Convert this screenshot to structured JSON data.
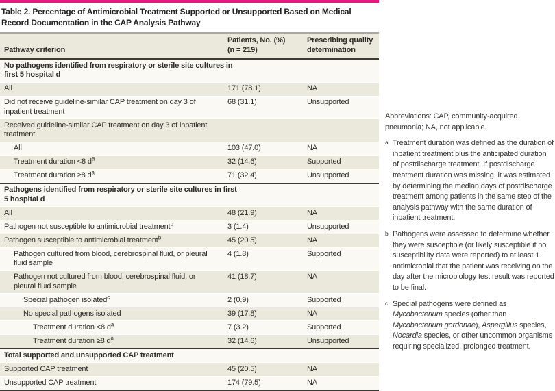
{
  "title": "Table 2. Percentage of Antimicrobial Treatment Supported or Unsupported Based on Medical Record Documentation in the CAP Analysis Pathway",
  "columns": {
    "criterion": "Pathway criterion",
    "patients_line1": "Patients, No. (%)",
    "patients_line2": "(n = 219)",
    "quality_line1": "Prescribing quality",
    "quality_line2": "determination"
  },
  "colors": {
    "accent_bar": "#e5197d",
    "row_beige": "#ebe8dc",
    "row_cream": "#faf9f4",
    "rule_dark": "#3c3a35",
    "rule_gray": "#aba79d"
  },
  "rows": [
    {
      "type": "section",
      "label": "No pathogens identified from respiratory or sterile site cultures in first 5 hospital d",
      "shade": "white"
    },
    {
      "type": "data",
      "label": "All",
      "indent": 0,
      "value": "171 (78.1)",
      "determination": "NA",
      "shade": "beige"
    },
    {
      "type": "data",
      "label": "Did not receive guideline-similar CAP treatment on day 3 of inpatient treatment",
      "indent": 0,
      "value": "68 (31.1)",
      "determination": "Unsupported",
      "shade": "white"
    },
    {
      "type": "data",
      "label": "Received guideline-similar CAP treatment on day 3 of inpatient treatment",
      "indent": 0,
      "value": "",
      "determination": "",
      "shade": "beige"
    },
    {
      "type": "data",
      "label": "All",
      "indent": 1,
      "value": "103 (47.0)",
      "determination": "NA",
      "shade": "white"
    },
    {
      "type": "data",
      "label": "Treatment duration <8 d",
      "sup": "a",
      "indent": 1,
      "value": "32 (14.6)",
      "determination": "Supported",
      "shade": "beige"
    },
    {
      "type": "data",
      "label": "Treatment duration ≥8 d",
      "sup": "a",
      "indent": 1,
      "value": "71 (32.4)",
      "determination": "Unsupported",
      "shade": "white",
      "rule_after": true
    },
    {
      "type": "section",
      "label": "Pathogens identified from respiratory or sterile site cultures in first 5 hospital d",
      "shade": "white"
    },
    {
      "type": "data",
      "label": "All",
      "indent": 0,
      "value": "48 (21.9)",
      "determination": "NA",
      "shade": "beige"
    },
    {
      "type": "data",
      "label": "Pathogen not susceptible to antimicrobial treatment",
      "sup": "b",
      "indent": 0,
      "value": "3 (1.4)",
      "determination": "Unsupported",
      "shade": "white"
    },
    {
      "type": "data",
      "label": "Pathogen susceptible to antimicrobial treatment",
      "sup": "b",
      "indent": 0,
      "value": "45 (20.5)",
      "determination": "NA",
      "shade": "beige"
    },
    {
      "type": "data",
      "label": "Pathogen cultured from blood, cerebrospinal fluid, or pleural fluid sample",
      "indent": 1,
      "value": "4 (1.8)",
      "determination": "Supported",
      "shade": "white"
    },
    {
      "type": "data",
      "label": "Pathogen not cultured from blood, cerebrospinal fluid, or pleural fluid sample",
      "indent": 1,
      "value": "41 (18.7)",
      "determination": "NA",
      "shade": "beige"
    },
    {
      "type": "data",
      "label": "Special pathogen isolated",
      "sup": "c",
      "indent": 2,
      "value": "2 (0.9)",
      "determination": "Supported",
      "shade": "white"
    },
    {
      "type": "data",
      "label": "No special pathogens isolated",
      "indent": 2,
      "value": "39 (17.8)",
      "determination": "NA",
      "shade": "beige"
    },
    {
      "type": "data",
      "label": "Treatment duration <8 d",
      "sup": "a",
      "indent": 3,
      "value": "7 (3.2)",
      "determination": "Supported",
      "shade": "white"
    },
    {
      "type": "data",
      "label": "Treatment duration ≥8 d",
      "sup": "a",
      "indent": 3,
      "value": "32 (14.6)",
      "determination": "Unsupported",
      "shade": "beige",
      "rule_after": true
    },
    {
      "type": "section",
      "label": "Total supported and unsupported CAP treatment",
      "shade": "white"
    },
    {
      "type": "data",
      "label": "Supported CAP treatment",
      "indent": 0,
      "value": "45 (20.5)",
      "determination": "NA",
      "shade": "beige"
    },
    {
      "type": "data",
      "label": "Unsupported CAP treatment",
      "indent": 0,
      "value": "174 (79.5)",
      "determination": "NA",
      "shade": "white"
    }
  ],
  "footnotes": {
    "abbreviations": "Abbreviations: CAP, community-acquired pneumonia; NA, not applicable.",
    "items": [
      {
        "marker": "a",
        "segments": [
          {
            "t": "Treatment duration was defined as the duration of inpatient treatment plus the anticipated duration of postdischarge treatment. If postdischarge treatment duration was missing, it was estimated by determining the median days of postdischarge treatment among patients in the same step of the analysis pathway with the same duration of inpatient treatment."
          }
        ]
      },
      {
        "marker": "b",
        "segments": [
          {
            "t": "Pathogens were assessed to determine whether they were susceptible (or likely susceptible if no susceptibility data were reported) to at least 1 antimicrobial that the patient was receiving on the day after the microbiology test result was reported to be final."
          }
        ]
      },
      {
        "marker": "c",
        "segments": [
          {
            "t": "Special pathogens were defined as "
          },
          {
            "t": "Mycobacterium",
            "i": true
          },
          {
            "t": " species (other than "
          },
          {
            "t": "Mycobacterium gordonae",
            "i": true
          },
          {
            "t": "), "
          },
          {
            "t": "Aspergillus",
            "i": true
          },
          {
            "t": " species, "
          },
          {
            "t": "Nocardia",
            "i": true
          },
          {
            "t": " species, or other uncommon organisms requiring specialized, prolonged treatment."
          }
        ]
      }
    ]
  }
}
